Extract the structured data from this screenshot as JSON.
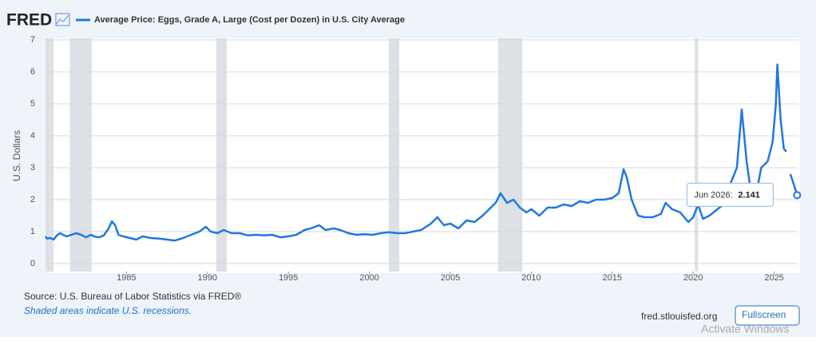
{
  "header": {
    "logo": "FRED"
  },
  "chart_data": {
    "type": "line",
    "y_label": "U.S. Dollars",
    "x": [
      1980.0,
      1980.1,
      1980.3,
      1980.5,
      1980.7,
      1980.9,
      1981.0,
      1981.3,
      1981.6,
      1981.9,
      1982.2,
      1982.5,
      1982.8,
      1983.0,
      1983.3,
      1983.6,
      1983.9,
      1984.1,
      1984.3,
      1984.5,
      1984.8,
      1985.2,
      1985.6,
      1986.0,
      1986.5,
      1987.0,
      1987.5,
      1988.0,
      1988.5,
      1989.0,
      1989.5,
      1989.9,
      1990.2,
      1990.6,
      1991.0,
      1991.5,
      1992.0,
      1992.5,
      1993.0,
      1993.5,
      1994.0,
      1994.5,
      1995.0,
      1995.5,
      1996.0,
      1996.5,
      1996.9,
      1997.3,
      1997.8,
      1998.2,
      1998.7,
      1999.2,
      1999.7,
      2000.2,
      2000.7,
      2001.2,
      2001.7,
      2002.2,
      2002.7,
      2003.2,
      2003.8,
      2004.2,
      2004.6,
      2005.0,
      2005.5,
      2006.0,
      2006.5,
      2007.0,
      2007.4,
      2007.8,
      2008.1,
      2008.5,
      2008.9,
      2009.3,
      2009.7,
      2010.0,
      2010.5,
      2011.0,
      2011.5,
      2012.0,
      2012.5,
      2013.0,
      2013.5,
      2014.0,
      2014.5,
      2015.0,
      2015.4,
      2015.7,
      2015.9,
      2016.2,
      2016.6,
      2017.0,
      2017.5,
      2018.0,
      2018.3,
      2018.7,
      2019.2,
      2019.7,
      2020.0,
      2020.3,
      2020.6,
      2021.0,
      2021.5,
      2022.0,
      2022.3,
      2022.7,
      2023.0,
      2023.3,
      2023.6,
      2023.9,
      2024.2,
      2024.6,
      2024.9,
      2025.1,
      2025.2,
      2025.4,
      2025.6,
      2025.75,
      2025.9,
      2026.0,
      2026.2,
      2026.42
    ],
    "series": [
      {
        "name": "Average Price: Eggs, Grade A, Large (Cost per Dozen) in U.S. City Average",
        "color": "#1f78e0",
        "values": [
          0.85,
          0.78,
          0.8,
          0.75,
          0.88,
          0.95,
          0.92,
          0.85,
          0.9,
          0.95,
          0.9,
          0.82,
          0.9,
          0.85,
          0.82,
          0.88,
          1.1,
          1.32,
          1.2,
          0.9,
          0.85,
          0.8,
          0.75,
          0.85,
          0.8,
          0.78,
          0.75,
          0.72,
          0.8,
          0.9,
          1.0,
          1.15,
          1.0,
          0.95,
          1.05,
          0.95,
          0.95,
          0.88,
          0.9,
          0.88,
          0.9,
          0.82,
          0.85,
          0.9,
          1.05,
          1.12,
          1.2,
          1.05,
          1.1,
          1.05,
          0.95,
          0.9,
          0.92,
          0.9,
          0.95,
          0.98,
          0.95,
          0.95,
          1.0,
          1.05,
          1.25,
          1.45,
          1.2,
          1.25,
          1.1,
          1.35,
          1.3,
          1.5,
          1.7,
          1.9,
          2.2,
          1.9,
          2.0,
          1.75,
          1.6,
          1.7,
          1.5,
          1.75,
          1.75,
          1.85,
          1.8,
          1.95,
          1.9,
          2.0,
          2.0,
          2.05,
          2.2,
          2.95,
          2.7,
          2.0,
          1.5,
          1.45,
          1.45,
          1.55,
          1.9,
          1.7,
          1.6,
          1.3,
          1.45,
          1.85,
          1.4,
          1.5,
          1.7,
          1.9,
          2.5,
          3.0,
          4.82,
          3.2,
          2.1,
          2.2,
          3.0,
          3.2,
          3.8,
          4.95,
          6.23,
          4.5,
          3.6,
          3.5,
          null,
          2.8,
          2.5,
          2.141
        ]
      }
    ],
    "recessions": [
      [
        1980.0,
        1980.5
      ],
      [
        1981.5,
        1982.85
      ],
      [
        1990.55,
        1991.2
      ],
      [
        2001.2,
        2001.85
      ],
      [
        2007.95,
        2009.45
      ],
      [
        2020.1,
        2020.3
      ]
    ],
    "xlim": [
      1980,
      2026.5
    ],
    "xticks": [
      1985,
      1990,
      1995,
      2000,
      2005,
      2010,
      2015,
      2020,
      2025
    ],
    "ylim": [
      0,
      7
    ],
    "yticks": [
      0,
      1,
      2,
      3,
      4,
      5,
      6,
      7
    ],
    "grid": true,
    "tooltip": {
      "label": "Jun 2026:",
      "value": 2.141
    }
  },
  "footer": {
    "source": "Source: U.S. Bureau of Labor Statistics via FRED®",
    "note": "Shaded areas indicate U.S. recessions.",
    "site": "fred.stlouisfed.org",
    "button": "Fullscreen",
    "watermark": "Activate Windows"
  }
}
